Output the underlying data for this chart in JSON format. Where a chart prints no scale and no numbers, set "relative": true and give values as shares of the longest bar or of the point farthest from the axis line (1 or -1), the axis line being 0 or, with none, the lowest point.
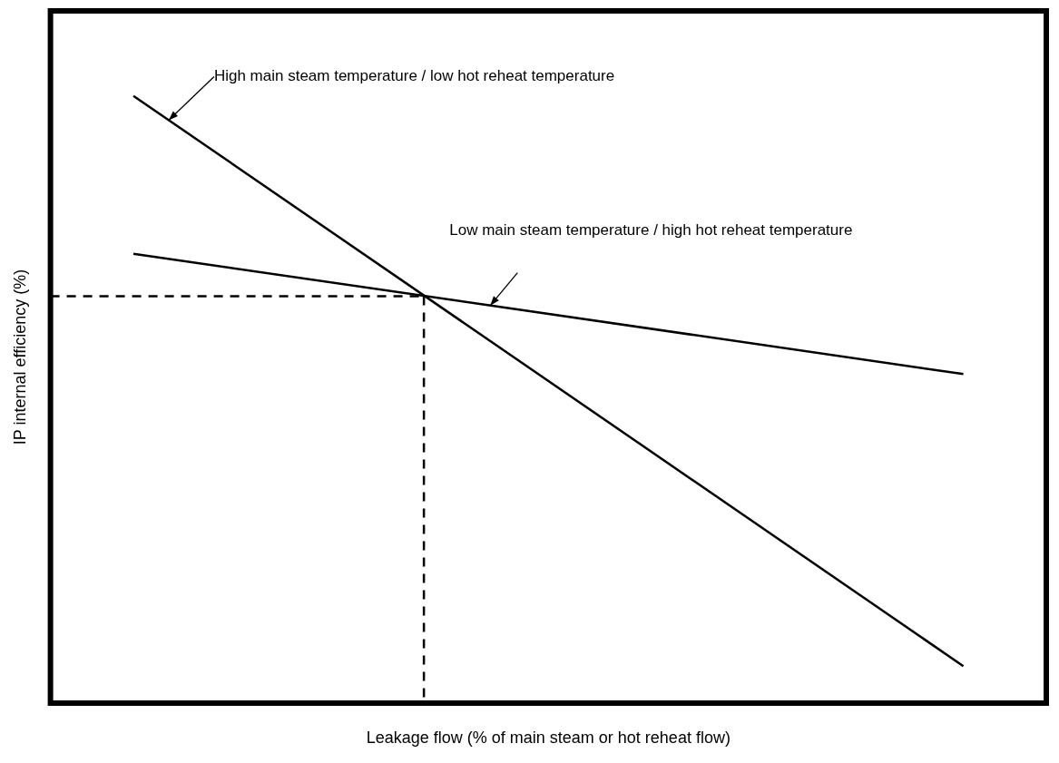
{
  "chart_data": {
    "type": "line",
    "relative": true,
    "xlabel": "Leakage flow (% of main steam or hot reheat flow)",
    "ylabel": "IP internal efficiency (%)",
    "grid": false,
    "legend": false,
    "marker": "none",
    "categories": [
      null,
      null,
      null,
      null,
      null,
      null,
      null,
      null,
      null,
      null,
      null,
      null,
      null,
      null,
      null,
      null,
      null,
      null,
      null,
      null,
      null,
      null,
      null,
      null,
      null
    ],
    "series": [
      {
        "color": "#000000",
        "values": [
          null,
          null,
          1,
          null,
          null,
          null,
          null,
          null,
          null,
          null,
          null,
          null,
          null,
          null,
          null,
          null,
          null,
          null,
          null,
          null,
          null,
          null,
          0.061,
          null,
          null
        ],
        "line_style": "solid"
      },
      {
        "color": "#000000",
        "values": [
          null,
          null,
          0.74,
          null,
          null,
          null,
          null,
          null,
          null,
          null,
          null,
          null,
          null,
          null,
          null,
          null,
          null,
          null,
          null,
          null,
          null,
          null,
          0.542,
          null,
          null
        ],
        "line_style": "solid"
      },
      {
        "color": "#000000",
        "values": [
          0.67,
          null,
          null,
          null,
          null,
          null,
          null,
          null,
          null,
          0.67,
          null,
          null,
          null,
          null,
          null,
          null,
          null,
          null,
          null,
          null,
          null,
          null,
          null,
          null,
          null
        ],
        "line_style": "dashed"
      }
    ],
    "annotations": [
      "High main steam temperature / low hot reheat temperature",
      "Low main steam temperature / high hot reheat temperature"
    ]
  }
}
